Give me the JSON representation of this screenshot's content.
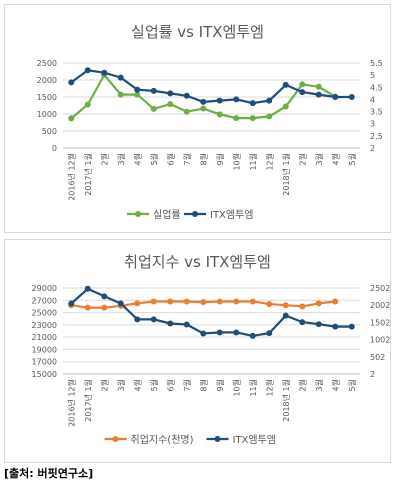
{
  "source": "[출처: 버핏연구소]",
  "charts": [
    {
      "title": "실업률 vs ITX엠투엠",
      "type": "line",
      "categories": [
        "2016년 12월",
        "2017년 1월",
        "2월",
        "3월",
        "4월",
        "5월",
        "6월",
        "7월",
        "8월",
        "9월",
        "10월",
        "11월",
        "12월",
        "2018년 1월",
        "2월",
        "3월",
        "4월",
        "5월"
      ],
      "series": [
        {
          "name": "실업률",
          "axis": "left",
          "color": "#70ad47",
          "values": [
            870,
            1280,
            2150,
            1570,
            1570,
            1150,
            1290,
            1070,
            1160,
            990,
            880,
            880,
            930,
            1220,
            1870,
            1800,
            1510,
            null
          ]
        },
        {
          "name": "ITX엠투엠",
          "axis": "right",
          "color": "#1f4e79",
          "values": [
            4.7,
            5.2,
            5.1,
            4.9,
            4.4,
            4.35,
            4.25,
            4.15,
            3.9,
            3.95,
            4.0,
            3.85,
            3.95,
            4.6,
            4.3,
            4.2,
            4.1,
            4.1
          ]
        }
      ],
      "yleft": {
        "min": 0,
        "max": 2500,
        "ticks": [
          "0",
          "500",
          "1000",
          "1500",
          "2000",
          "2500"
        ]
      },
      "yright": {
        "min": 2,
        "max": 5.5,
        "ticks": [
          "2",
          "2.5",
          "3",
          "3.5",
          "4",
          "4.5",
          "5",
          "5.5"
        ]
      }
    },
    {
      "title": "취업지수 vs ITX엠투엠",
      "type": "line",
      "categories": [
        "2016년 12월",
        "2017년 1월",
        "2월",
        "3월",
        "4월",
        "5월",
        "6월",
        "7월",
        "8월",
        "9월",
        "10월",
        "11월",
        "12월",
        "2018년 1월",
        "2월",
        "3월",
        "4월",
        "5월"
      ],
      "series": [
        {
          "name": "취업지수(천명)",
          "axis": "left",
          "color": "#ed7d31",
          "values": [
            26200,
            25800,
            25800,
            26100,
            26500,
            26800,
            26800,
            26800,
            26700,
            26800,
            26800,
            26800,
            26400,
            26200,
            26000,
            26500,
            26800,
            null
          ]
        },
        {
          "name": "ITX엠투엠",
          "axis": "right",
          "color": "#1f4e79",
          "values": [
            2050,
            2480,
            2260,
            2050,
            1590,
            1590,
            1470,
            1440,
            1180,
            1210,
            1210,
            1110,
            1190,
            1700,
            1510,
            1450,
            1380,
            1380
          ]
        }
      ],
      "yleft": {
        "min": 15000,
        "max": 29000,
        "ticks": [
          "15000",
          "17000",
          "19000",
          "21000",
          "23000",
          "25000",
          "27000",
          "29000"
        ]
      },
      "yright": {
        "min": 2,
        "max": 2502,
        "ticks": [
          "2",
          "502",
          "1002",
          "1502",
          "2002",
          "2502"
        ]
      }
    }
  ]
}
